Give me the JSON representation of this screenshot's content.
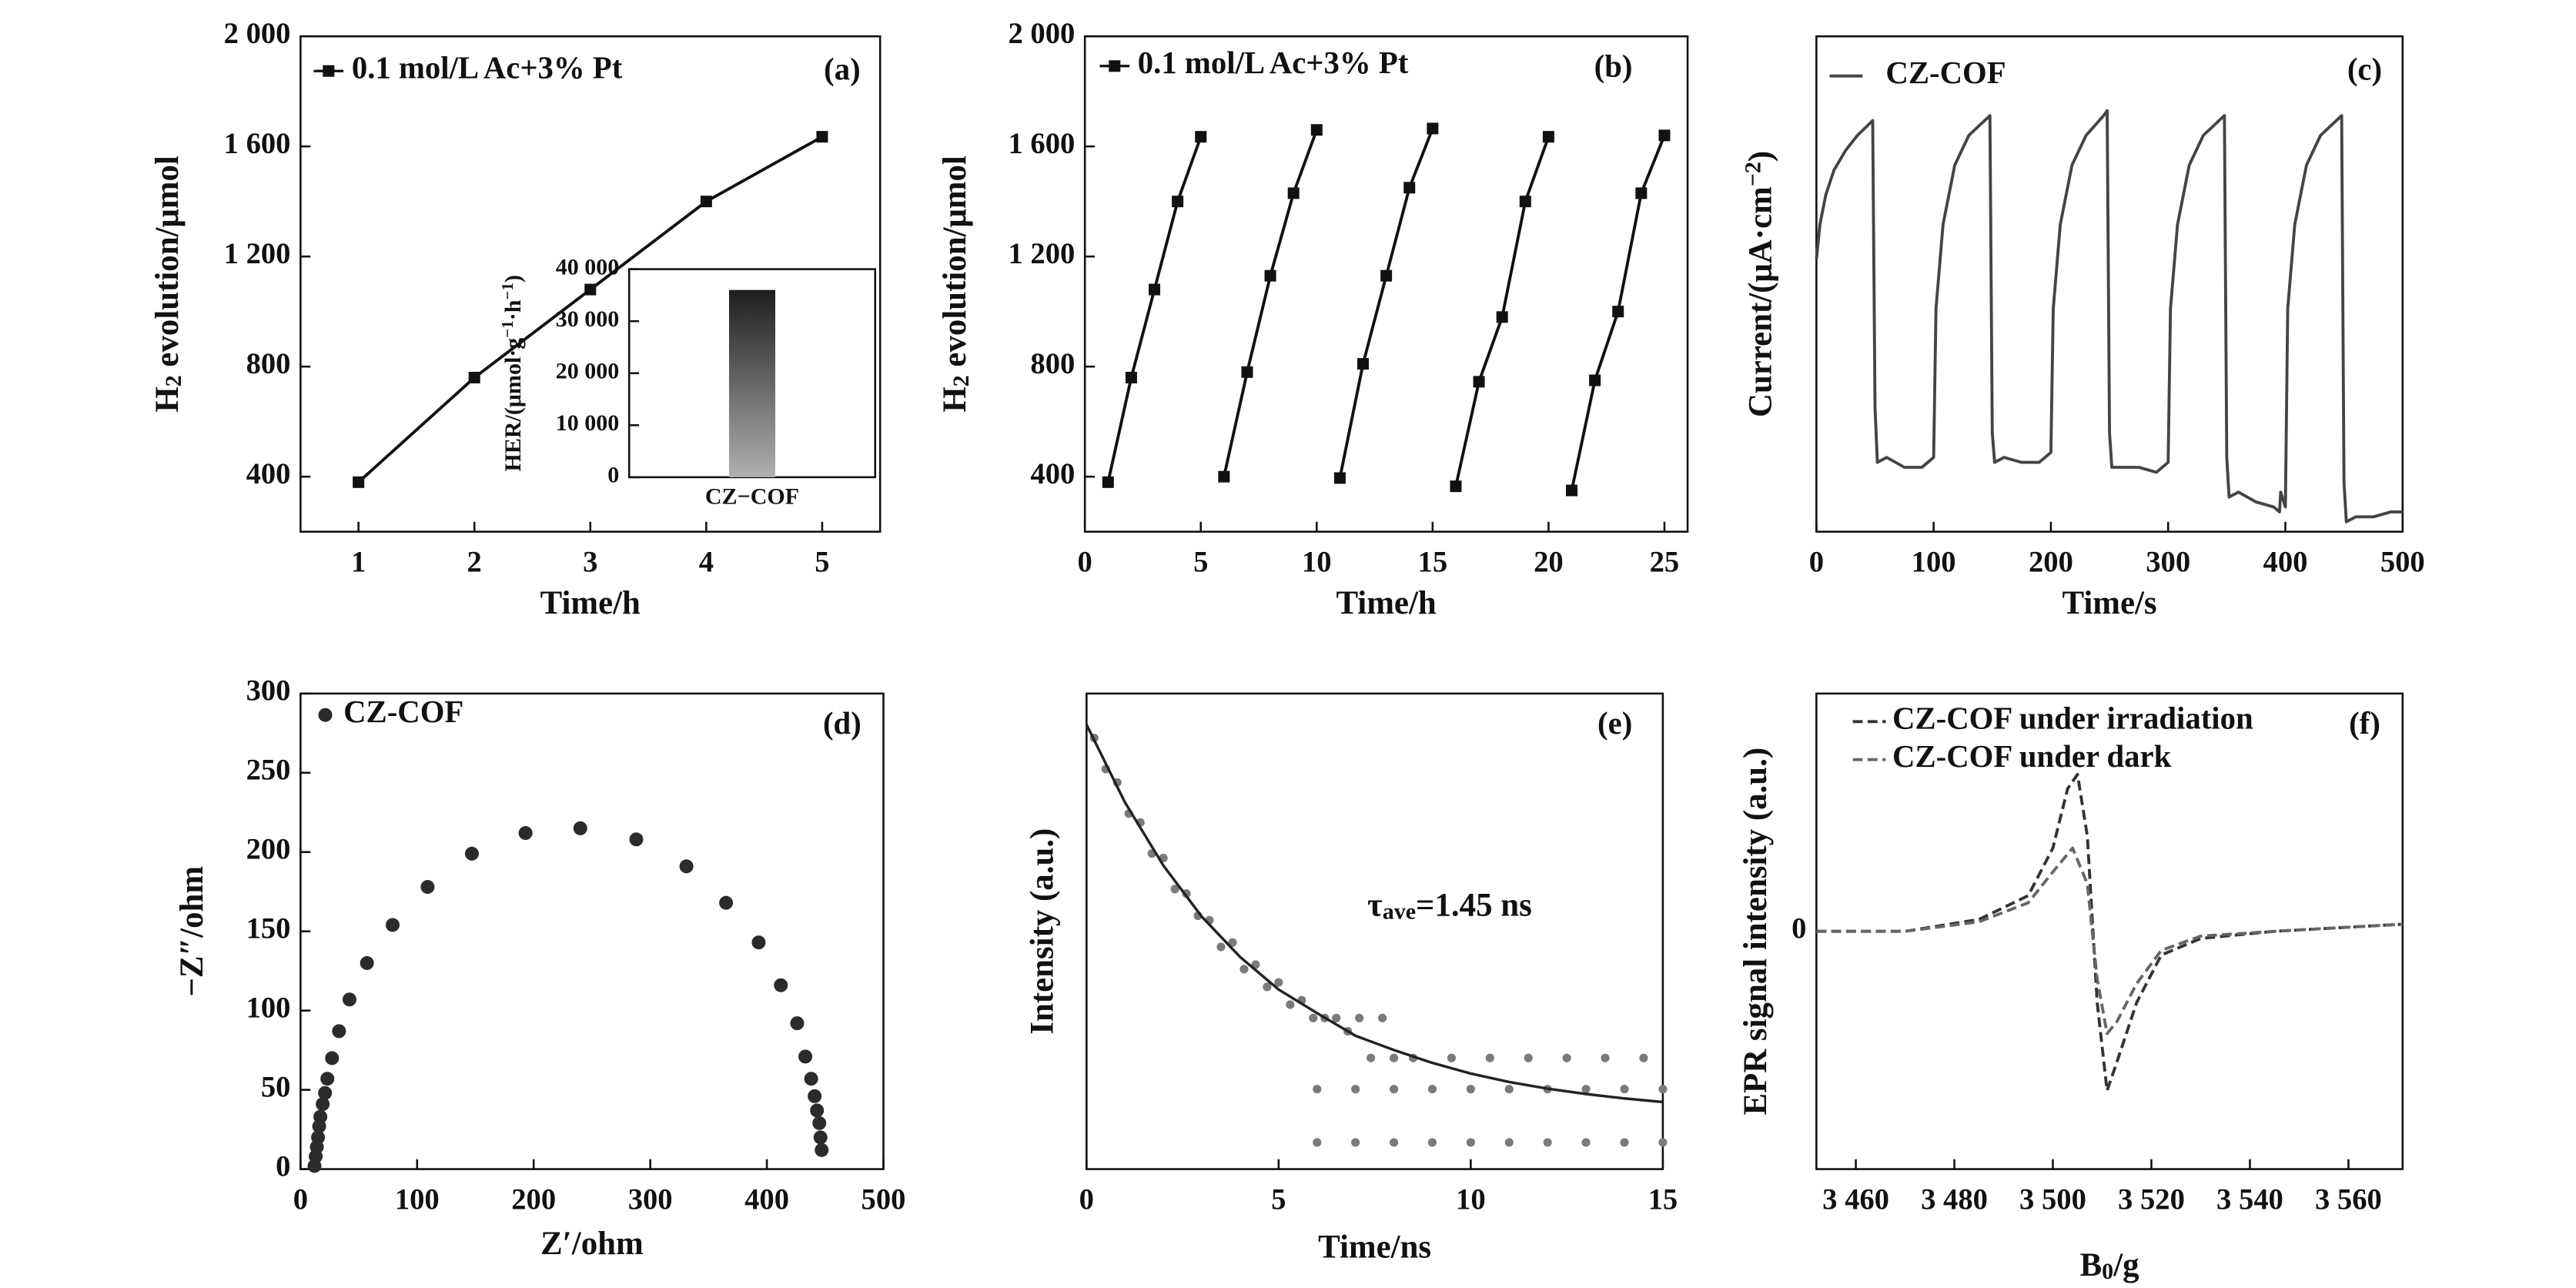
{
  "chart_data": [
    {
      "type": "line",
      "panel_label": "(a)",
      "xlabel": "Time/h",
      "ylabel": [
        "H",
        {
          "sub": "2"
        },
        " evolution/μmol"
      ],
      "x": [
        1,
        2,
        3,
        4,
        5
      ],
      "xlim": [
        0.5,
        5.5
      ],
      "xticks": [
        1,
        2,
        3,
        4,
        5
      ],
      "ylim": [
        200,
        2000
      ],
      "yticks": [
        400,
        800,
        {
          "value": 1200,
          "label": "1 200"
        },
        {
          "value": 1600,
          "label": "1 600"
        },
        {
          "value": 2000,
          "label": "2 000"
        }
      ],
      "series": [
        {
          "name": "0.1 mol/L Ac+3% Pt",
          "color": "#111111",
          "marker": "square",
          "values": [
            380,
            760,
            1080,
            1400,
            1635
          ]
        }
      ]
    },
    {
      "type": "line",
      "panel_label": "(b)",
      "xlabel": "Time/h",
      "ylabel": [
        "H",
        {
          "sub": "2"
        },
        " evolution/μmol"
      ],
      "x": [
        1,
        2,
        3,
        4,
        5,
        null,
        6,
        7,
        8,
        9,
        10,
        null,
        11,
        12,
        13,
        14,
        15,
        null,
        16,
        17,
        18,
        19,
        20,
        null,
        21,
        22,
        23,
        24,
        25
      ],
      "xlim": [
        0,
        26
      ],
      "xticks": [
        0,
        5,
        10,
        15,
        20,
        25
      ],
      "ylim": [
        200,
        2000
      ],
      "yticks": [
        400,
        800,
        {
          "value": 1200,
          "label": "1 200"
        },
        {
          "value": 1600,
          "label": "1 600"
        },
        {
          "value": 2000,
          "label": "2 000"
        }
      ],
      "series": [
        {
          "name": "0.1 mol/L Ac+3% Pt",
          "color": "#111111",
          "marker": "square",
          "values": [
            380,
            760,
            1080,
            1400,
            1635,
            null,
            400,
            780,
            1130,
            1430,
            1660,
            null,
            395,
            810,
            1130,
            1450,
            1665,
            null,
            365,
            745,
            980,
            1400,
            1635,
            null,
            350,
            750,
            1000,
            1430,
            1640
          ]
        }
      ]
    },
    {
      "type": "line",
      "panel_label": "(c)",
      "xlabel": "Time/s",
      "ylabel": [
        "Current/(μA·cm",
        {
          "sup": "−2"
        },
        ")"
      ],
      "x": [
        0,
        3,
        8,
        15,
        25,
        35,
        48,
        50,
        52,
        60,
        75,
        90,
        100,
        102,
        108,
        118,
        130,
        148,
        150,
        152,
        160,
        175,
        190,
        200,
        202,
        208,
        218,
        230,
        245,
        248,
        250,
        252,
        260,
        275,
        290,
        300,
        302,
        308,
        318,
        330,
        348,
        350,
        352,
        360,
        375,
        390,
        395,
        396,
        400,
        402,
        408,
        418,
        430,
        448,
        450,
        452,
        460,
        475,
        490,
        500
      ],
      "xlim": [
        0,
        500
      ],
      "xticks": [
        0,
        100,
        200,
        300,
        400,
        500
      ],
      "ylim": [
        0,
        1
      ],
      "series": [
        {
          "name": "CZ-COF",
          "color": "#444444",
          "values": [
            0.55,
            0.62,
            0.68,
            0.73,
            0.77,
            0.8,
            0.83,
            0.25,
            0.14,
            0.15,
            0.13,
            0.13,
            0.15,
            0.45,
            0.62,
            0.74,
            0.8,
            0.84,
            0.2,
            0.14,
            0.15,
            0.14,
            0.14,
            0.16,
            0.45,
            0.62,
            0.74,
            0.8,
            0.84,
            0.85,
            0.2,
            0.13,
            0.13,
            0.13,
            0.12,
            0.14,
            0.45,
            0.62,
            0.74,
            0.8,
            0.84,
            0.15,
            0.07,
            0.08,
            0.06,
            0.05,
            0.04,
            0.08,
            0.05,
            0.45,
            0.62,
            0.74,
            0.8,
            0.84,
            0.1,
            0.02,
            0.03,
            0.03,
            0.04,
            0.04
          ]
        }
      ]
    },
    {
      "type": "scatter",
      "panel_label": "(d)",
      "xlabel": "Z′/ohm",
      "ylabel": "−Z″/ohm",
      "xlim": [
        0,
        500
      ],
      "xticks": [
        0,
        100,
        200,
        300,
        400,
        500
      ],
      "ylim": [
        0,
        300
      ],
      "yticks": [
        0,
        50,
        100,
        150,
        200,
        250,
        300
      ],
      "series": [
        {
          "name": "CZ-COF",
          "color": "#2b2b2b",
          "x": [
            12,
            13,
            14,
            15,
            16,
            17,
            19,
            21,
            23,
            27,
            33,
            42,
            57,
            79,
            109,
            147,
            193,
            240,
            288,
            331,
            365,
            393,
            412,
            426,
            433,
            438,
            441,
            443,
            445,
            446,
            447
          ],
          "values": [
            2,
            8,
            14,
            20,
            27,
            33,
            41,
            48,
            57,
            70,
            87,
            107,
            130,
            154,
            178,
            199,
            212,
            215,
            208,
            191,
            168,
            143,
            116,
            92,
            71,
            57,
            46,
            37,
            29,
            20,
            12
          ]
        }
      ]
    },
    {
      "type": "scatter",
      "panel_label": "(e)",
      "xlabel": "Time/ns",
      "ylabel": "Intensity (a.u.)",
      "annotation": [
        "τ",
        {
          "sub": "ave"
        },
        "=1.45 ns"
      ],
      "xlim": [
        0,
        15
      ],
      "xticks": [
        0,
        5,
        10,
        15
      ],
      "ylim": [
        0,
        1.07
      ],
      "series": [
        {
          "color": "#7a7a7a",
          "x": [
            0.2,
            0.5,
            0.8,
            1.1,
            1.4,
            1.7,
            2.0,
            2.3,
            2.6,
            2.9,
            3.2,
            3.5,
            3.8,
            4.1,
            4.4,
            4.7,
            5.0,
            5.3,
            5.6,
            5.9,
            6.2,
            6.5,
            6.8,
            7.1,
            7.4,
            7.7,
            8.0,
            6,
            7,
            8,
            9,
            10,
            11,
            12,
            13,
            14,
            15,
            8.5,
            9.5,
            10.5,
            11.5,
            12.5,
            13.5,
            14.5,
            6,
            7,
            8,
            9,
            10,
            11,
            12,
            13,
            14,
            15
          ],
          "values": [
            0.97,
            0.9,
            0.87,
            0.8,
            0.78,
            0.71,
            0.7,
            0.63,
            0.62,
            0.57,
            0.56,
            0.5,
            0.51,
            0.45,
            0.46,
            0.41,
            0.42,
            0.37,
            0.38,
            0.34,
            0.34,
            0.34,
            0.31,
            0.34,
            0.25,
            0.34,
            0.25,
            0.18,
            0.18,
            0.18,
            0.18,
            0.18,
            0.18,
            0.18,
            0.18,
            0.18,
            0.18,
            0.25,
            0.25,
            0.25,
            0.25,
            0.25,
            0.25,
            0.25,
            0.06,
            0.06,
            0.06,
            0.06,
            0.06,
            0.06,
            0.06,
            0.06,
            0.06,
            0.06
          ]
        },
        {
          "color": "#222222",
          "line": true,
          "x": [
            0,
            1,
            2,
            3,
            4,
            5,
            6,
            7,
            8,
            9,
            10,
            11,
            12,
            13,
            14,
            15
          ],
          "values": [
            1.0,
            0.825,
            0.683,
            0.568,
            0.477,
            0.404,
            0.351,
            0.3,
            0.268,
            0.239,
            0.215,
            0.196,
            0.181,
            0.169,
            0.159,
            0.151
          ]
        }
      ]
    },
    {
      "type": "line",
      "panel_label": "(f)",
      "xlabel": [
        "B",
        {
          "sub": "0"
        },
        "/g"
      ],
      "ylabel": "EPR signal intensity (a.u.)",
      "xlim": [
        3452,
        3571
      ],
      "xticks": [
        {
          "value": 3460,
          "label": "3 460"
        },
        {
          "value": 3480,
          "label": "3 480"
        },
        {
          "value": 3500,
          "label": "3 500"
        },
        {
          "value": 3520,
          "label": "3 520"
        },
        {
          "value": 3540,
          "label": "3 540"
        },
        {
          "value": 3560,
          "label": "3 560"
        }
      ],
      "ylim": [
        -1,
        1
      ],
      "yticks": [
        0
      ],
      "series": [
        {
          "name": "CZ-COF under irradiation",
          "color": "#333333",
          "dash": true,
          "x": [
            3452,
            3470,
            3485,
            3495,
            3500,
            3503,
            3505,
            3507,
            3509,
            3511,
            3513,
            3517,
            3522,
            3530,
            3545,
            3571
          ],
          "values": [
            0,
            0,
            0.05,
            0.15,
            0.35,
            0.6,
            0.66,
            0.4,
            -0.3,
            -0.67,
            -0.55,
            -0.3,
            -0.1,
            -0.03,
            0,
            0.03
          ]
        },
        {
          "name": "CZ-COF under dark",
          "color": "#666666",
          "dash": true,
          "x": [
            3452,
            3470,
            3485,
            3495,
            3500,
            3504,
            3507,
            3509,
            3511,
            3513,
            3517,
            3522,
            3530,
            3545,
            3571
          ],
          "values": [
            0,
            0,
            0.04,
            0.12,
            0.25,
            0.35,
            0.2,
            -0.2,
            -0.43,
            -0.38,
            -0.22,
            -0.08,
            -0.02,
            0,
            0.03
          ]
        }
      ]
    },
    {
      "type": "bar",
      "ylabel": [
        "HER/(μmol·g",
        {
          "sup": "−1"
        },
        "·h",
        {
          "sup": "−1"
        },
        ")"
      ],
      "categories": [
        "CZ−COF"
      ],
      "values": [
        36000
      ],
      "gradient": [
        "#1e1e1e",
        "#b0b0b0"
      ],
      "ylim": [
        0,
        40000
      ],
      "yticks": [
        0,
        {
          "value": 10000,
          "label": "10 000"
        },
        {
          "value": 20000,
          "label": "20 000"
        },
        {
          "value": 30000,
          "label": "30 000"
        },
        {
          "value": 40000,
          "label": "40 000"
        }
      ]
    }
  ]
}
